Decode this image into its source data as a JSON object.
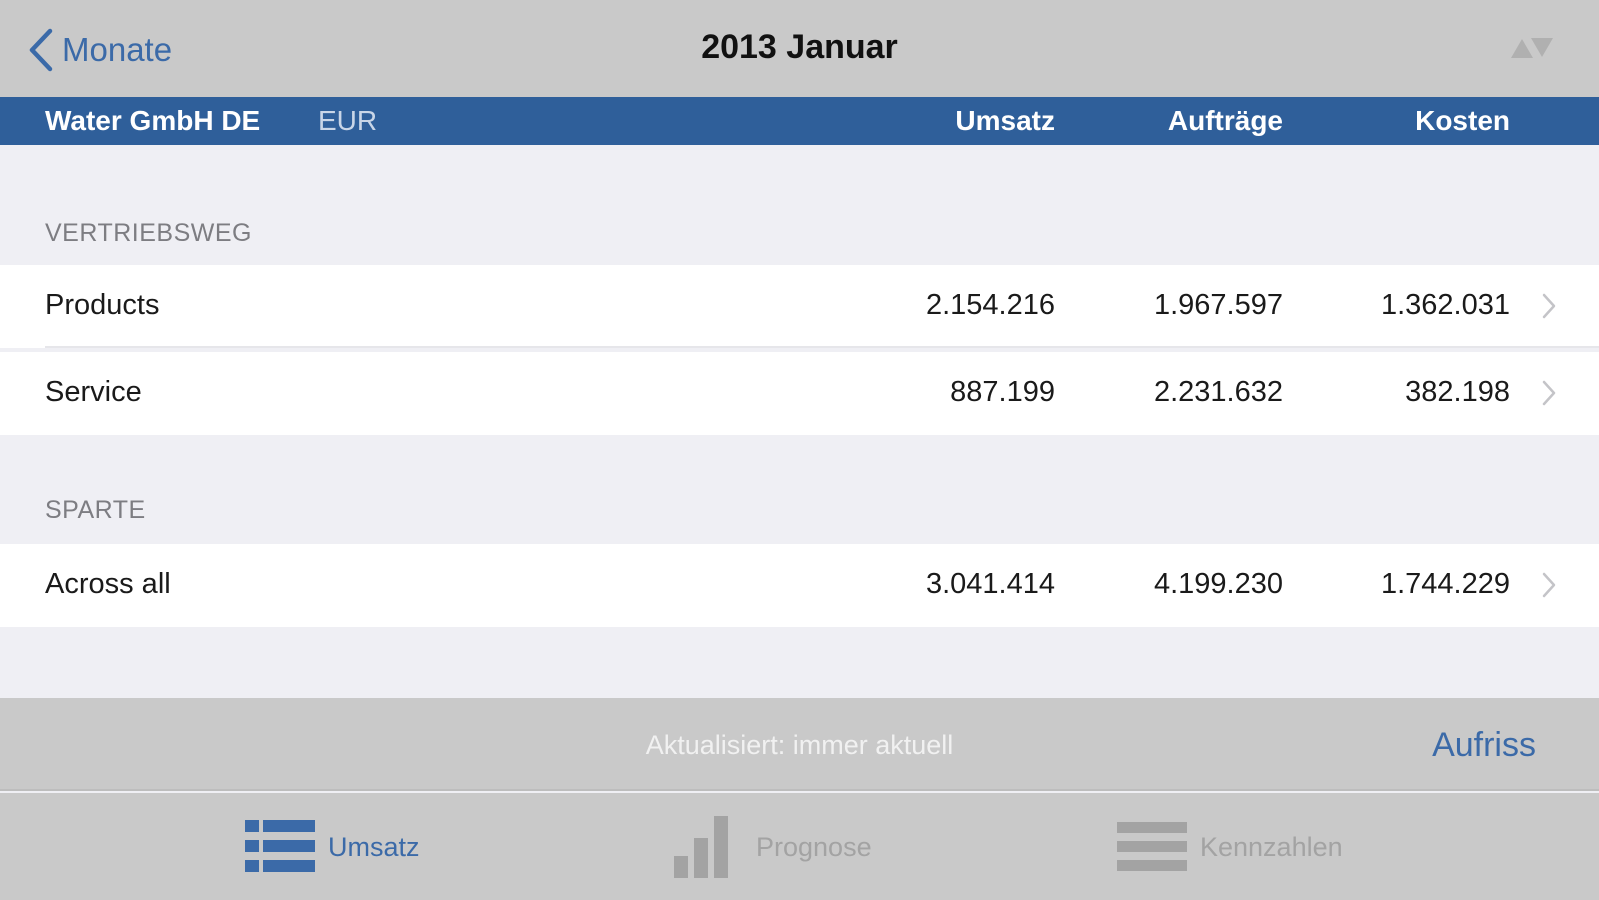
{
  "nav": {
    "back_label": "Monate",
    "title": "2013 Januar"
  },
  "header": {
    "company": "Water GmbH DE",
    "currency": "EUR",
    "columns": [
      "Umsatz",
      "Aufträge",
      "Kosten"
    ]
  },
  "sections": [
    {
      "title": "VERTRIEBSWEG",
      "rows": [
        {
          "label": "Products",
          "values": [
            "2.154.216",
            "1.967.597",
            "1.362.031"
          ]
        },
        {
          "label": "Service",
          "values": [
            "887.199",
            "2.231.632",
            "382.198"
          ]
        }
      ]
    },
    {
      "title": "SPARTE",
      "rows": [
        {
          "label": "Across all",
          "values": [
            "3.041.414",
            "4.199.230",
            "1.744.229"
          ]
        }
      ]
    }
  ],
  "status": {
    "text": "Aktualisiert: immer aktuell",
    "action": "Aufriss"
  },
  "tabs": [
    {
      "label": "Umsatz",
      "icon": "list-icon",
      "active": true
    },
    {
      "label": "Prognose",
      "icon": "bar-chart-icon",
      "active": false
    },
    {
      "label": "Kennzahlen",
      "icon": "lines-icon",
      "active": false
    }
  ],
  "colors": {
    "accent": "#3b6aa8",
    "header_bg": "#2f5f9a",
    "bar_bg": "#c9c9c9",
    "group_bg": "#efeff4"
  }
}
